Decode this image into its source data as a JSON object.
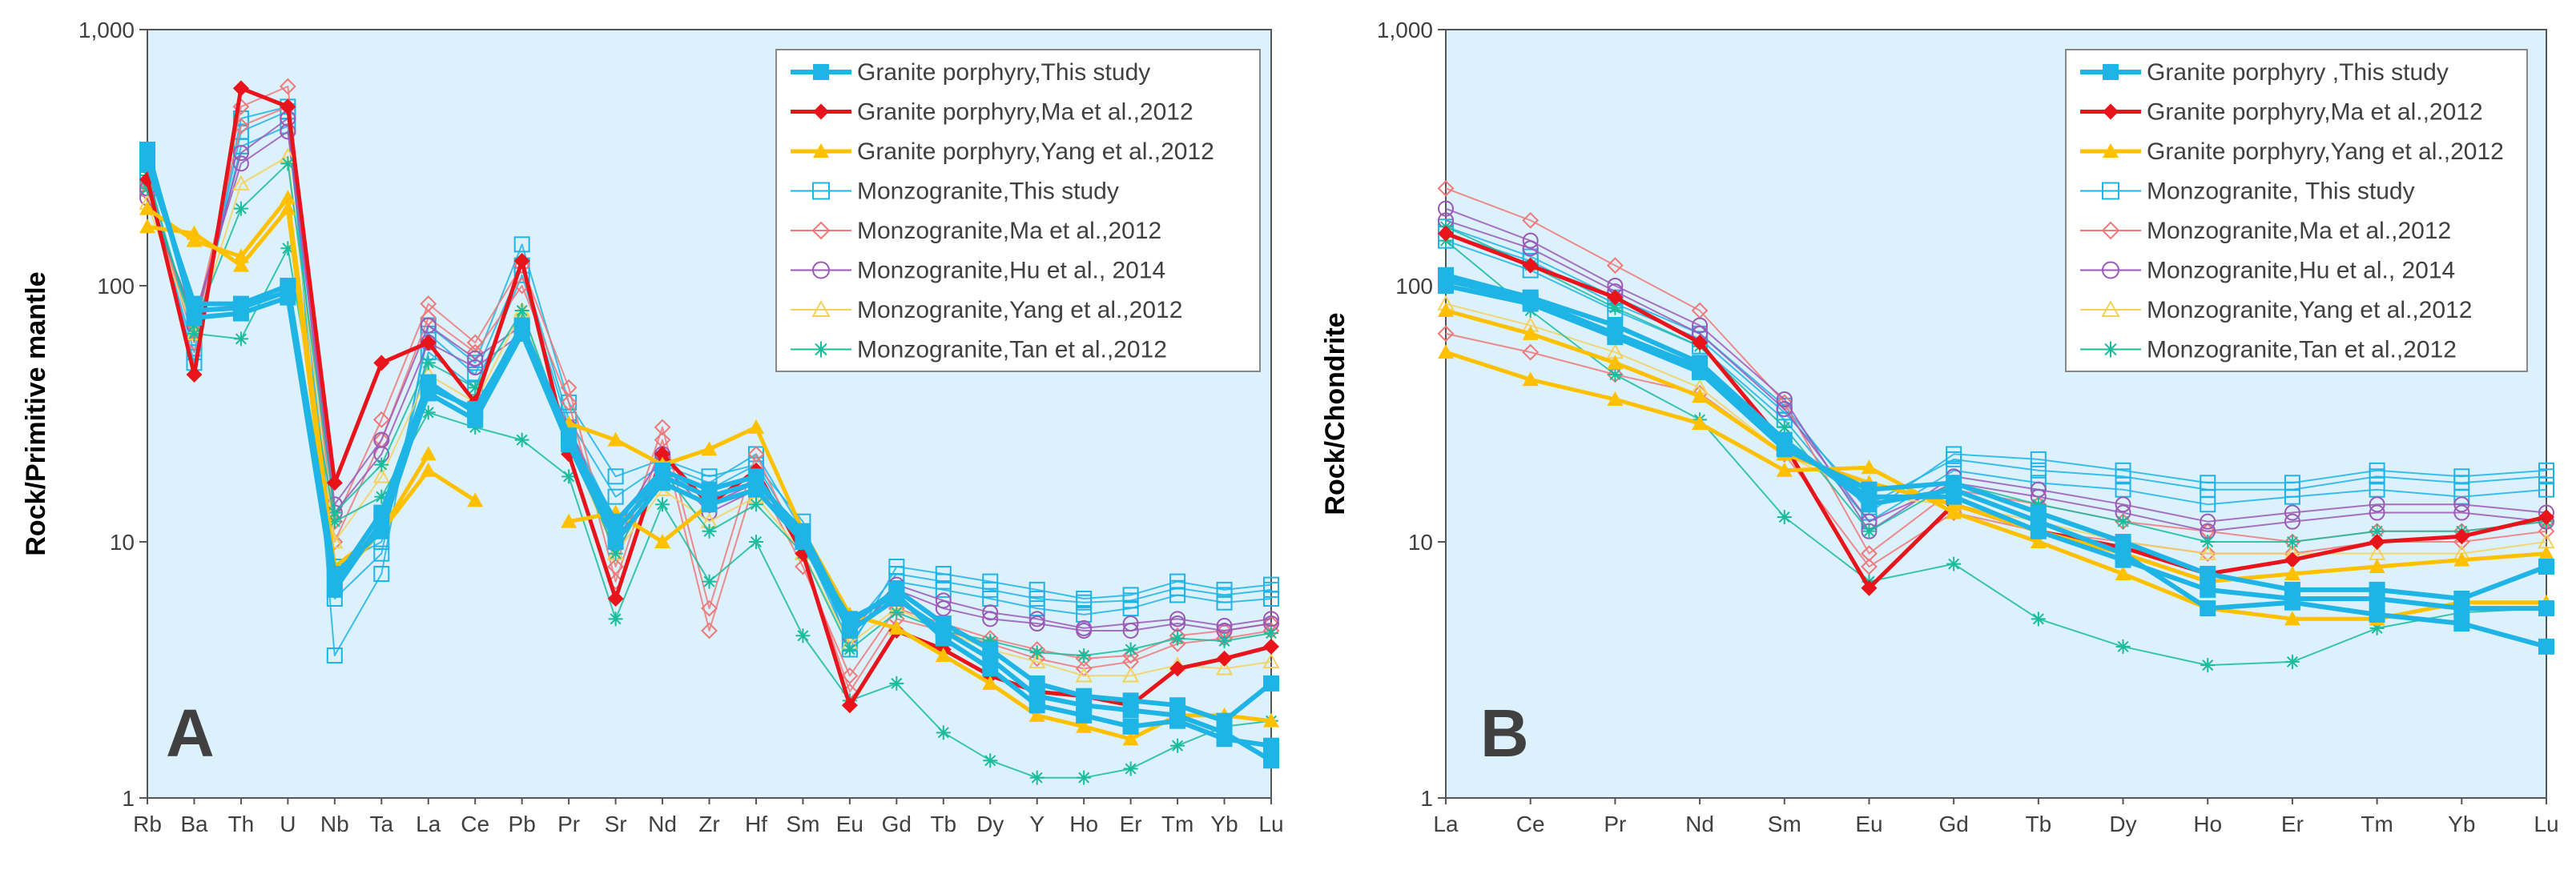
{
  "figure": {
    "colors": {
      "plot_bg": "#dcf1fb",
      "legend_bg": "#ffffff"
    }
  },
  "chart_data": [
    {
      "type": "line",
      "panel_label": "A",
      "ylabel": "Rock/Primitive mantle",
      "xlabel": "",
      "yscale": "log",
      "ylim": [
        1,
        1000
      ],
      "ytick_labels": [
        "1",
        "10",
        "100",
        "1,000"
      ],
      "legend_position": "top-right",
      "categories": [
        "Rb",
        "Ba",
        "Th",
        "U",
        "Nb",
        "Ta",
        "La",
        "Ce",
        "Pb",
        "Pr",
        "Sr",
        "Nd",
        "Zr",
        "Hf",
        "Sm",
        "Eu",
        "Gd",
        "Tb",
        "Dy",
        "Y",
        "Ho",
        "Er",
        "Tm",
        "Yb",
        "Lu"
      ],
      "series": [
        {
          "name": "Granite porphyry,This study",
          "color": "#1fb4e6",
          "marker": "square-filled",
          "linewidth": 6,
          "samples": [
            [
              340,
              75,
              78,
              90,
              6.5,
              12,
              38,
              30,
              65,
              24,
              10,
              17,
              14,
              16,
              10,
              4.5,
              6.0,
              4.5,
              3.5,
              2.5,
              2.3,
              2.2,
              2.1,
              1.8,
              1.4
            ],
            [
              330,
              80,
              82,
              95,
              7.0,
              13,
              42,
              32,
              70,
              26,
              11,
              18,
              15,
              17,
              11,
              4.8,
              6.5,
              4.8,
              3.8,
              2.8,
              2.5,
              2.4,
              2.3,
              2.0,
              2.8
            ],
            [
              300,
              85,
              85,
              100,
              7.5,
              11,
              40,
              33,
              68,
              25,
              12,
              19,
              16,
              18,
              10,
              5.0,
              6.2,
              4.2,
              3.2,
              2.3,
              2.1,
              1.9,
              2.0,
              1.7,
              1.6
            ]
          ]
        },
        {
          "name": "Granite porphyry,Ma et al.,2012",
          "color": "#e8141c",
          "marker": "diamond-filled",
          "linewidth": 5,
          "samples": [
            [
              260,
              45,
              590,
              500,
              17,
              50,
              60,
              35,
              125,
              22,
              6,
              22,
              14,
              19,
              9,
              2.3,
              4.5,
              3.8,
              3.0,
              2.6,
              2.5,
              2.3,
              3.2,
              3.5,
              3.9
            ]
          ]
        },
        {
          "name": "Granite porphyry,Yang et al.,2012",
          "color": "#ffc000",
          "marker": "triangle-filled",
          "linewidth": 5,
          "samples": [
            [
              170,
              160,
              120,
              200,
              7.0,
              11,
              19,
              14.5,
              null,
              29,
              25,
              20,
              23,
              28,
              11,
              5.2,
              4.6,
              3.6,
              2.8,
              2.1,
              1.9,
              1.7,
              2.1,
              2.1,
              2.0
            ],
            [
              200,
              150,
              130,
              220,
              8.0,
              11,
              22,
              null,
              null,
              12,
              13,
              10,
              14,
              16,
              null,
              null,
              null,
              null,
              null,
              null,
              null,
              null,
              null,
              null,
              null
            ]
          ]
        },
        {
          "name": "Monzogranite,This study",
          "color": "#1fb4e6",
          "marker": "square-open",
          "linewidth": 2,
          "samples": [
            [
              260,
              50,
              450,
              500,
              3.6,
              7.5,
              70,
              50,
              145,
              35,
              18,
              21,
              18,
              20,
              12,
              3.8,
              8.0,
              7.5,
              7.0,
              6.5,
              6.0,
              6.2,
              7.0,
              6.5,
              6.8
            ],
            [
              240,
              55,
              400,
              480,
              6.0,
              9.0,
              65,
              45,
              120,
              30,
              15,
              20,
              17,
              22,
              11,
              4.5,
              7.5,
              7.0,
              6.5,
              6.0,
              5.8,
              5.9,
              6.6,
              6.2,
              6.5
            ],
            [
              280,
              60,
              350,
              420,
              8.0,
              10,
              55,
              40,
              110,
              28,
              12,
              18,
              16,
              20,
              10,
              4.0,
              7.0,
              6.5,
              6.0,
              5.5,
              5.2,
              5.5,
              6.2,
              5.8,
              6.0
            ]
          ]
        },
        {
          "name": "Monzogranite,Ma et al.,2012",
          "color": "#f07878",
          "marker": "diamond-open",
          "linewidth": 2,
          "samples": [
            [
              250,
              60,
              500,
              600,
              12,
              30,
              85,
              60,
              120,
              40,
              8,
              28,
              5.5,
              22,
              9,
              2.6,
              5.0,
              4.5,
              4.0,
              3.5,
              3.2,
              3.4,
              4.0,
              4.2,
              4.5
            ],
            [
              230,
              70,
              420,
              500,
              10,
              25,
              75,
              55,
              100,
              35,
              7,
              25,
              4.5,
              18,
              8,
              3.0,
              5.5,
              4.8,
              4.2,
              3.8,
              3.5,
              3.6,
              4.3,
              4.5,
              4.8
            ]
          ]
        },
        {
          "name": "Monzogranite,Hu et al., 2014",
          "color": "#9b59b6",
          "marker": "circle-open",
          "linewidth": 2,
          "samples": [
            [
              240,
              70,
              330,
              450,
              14,
              25,
              70,
              52,
              70,
              28,
              11,
              22,
              14,
              17,
              11,
              4.5,
              6.8,
              5.9,
              5.3,
              5.0,
              4.6,
              4.8,
              5.0,
              4.7,
              5.0
            ],
            [
              220,
              75,
              300,
              400,
              13,
              22,
              60,
              48,
              65,
              26,
              10,
              20,
              13,
              16,
              10,
              4.3,
              6.5,
              5.5,
              5.0,
              4.8,
              4.5,
              4.5,
              4.8,
              4.5,
              4.8
            ]
          ]
        },
        {
          "name": "Monzogranite,Yang et al.,2012",
          "color": "#f5d15c",
          "marker": "triangle-open",
          "linewidth": 2,
          "samples": [
            [
              210,
              65,
              250,
              320,
              10,
              18,
              45,
              35,
              80,
              24,
              9,
              16,
              12,
              15,
              9,
              4.0,
              5.5,
              4.5,
              3.8,
              3.4,
              3.0,
              3.0,
              3.3,
              3.2,
              3.4
            ]
          ]
        },
        {
          "name": "Monzogranite,Tan et al.,2012",
          "color": "#1abc9c",
          "marker": "star",
          "linewidth": 2,
          "samples": [
            [
              270,
              65,
              62,
              140,
              12,
              15,
              32,
              28,
              25,
              18,
              5,
              14,
              7,
              10,
              4.3,
              2.4,
              2.8,
              1.8,
              1.4,
              1.2,
              1.2,
              1.3,
              1.6,
              1.9,
              2.0
            ],
            [
              240,
              70,
              200,
              300,
              13,
              20,
              50,
              40,
              80,
              25,
              9,
              19,
              11,
              14,
              9,
              3.8,
              5.3,
              4.5,
              4.1,
              3.7,
              3.6,
              3.8,
              4.2,
              4.1,
              4.4
            ]
          ]
        }
      ]
    },
    {
      "type": "line",
      "panel_label": "B",
      "ylabel": "Rock/Chondrite",
      "xlabel": "",
      "yscale": "log",
      "ylim": [
        1,
        1000
      ],
      "ytick_labels": [
        "1",
        "10",
        "100",
        "1,000"
      ],
      "legend_position": "top-right",
      "categories": [
        "La",
        "Ce",
        "Pr",
        "Nd",
        "Sm",
        "Eu",
        "Gd",
        "Tb",
        "Dy",
        "Ho",
        "Er",
        "Tm",
        "Yb",
        "Lu"
      ],
      "series": [
        {
          "name": "Granite porphyry ,This study",
          "color": "#1fb4e6",
          "marker": "square-filled",
          "linewidth": 6,
          "samples": [
            [
              110,
              90,
              70,
              50,
              25,
              14,
              16,
              12,
              9,
              5.5,
              5.8,
              5.2,
              4.8,
              3.9
            ],
            [
              100,
              85,
              63,
              46,
              23,
              16,
              17,
              13,
              10,
              7.5,
              6.5,
              6.5,
              6.0,
              8.0
            ],
            [
              105,
              88,
              65,
              48,
              24,
              15,
              15,
              11,
              8.5,
              6.5,
              6.0,
              6.0,
              5.5,
              5.5
            ]
          ]
        },
        {
          "name": "Granite porphyry,Ma et al.,2012",
          "color": "#e8141c",
          "marker": "diamond-filled",
          "linewidth": 5,
          "samples": [
            [
              160,
              120,
              90,
              60,
              24,
              6.6,
              14,
              11,
              9.5,
              7.5,
              8.5,
              10,
              10.5,
              12.5
            ]
          ]
        },
        {
          "name": "Granite porphyry,Yang et al.,2012",
          "color": "#ffc000",
          "marker": "triangle-filled",
          "linewidth": 5,
          "samples": [
            [
              55,
              43,
              36,
              29,
              19,
              19.5,
              13,
              10,
              7.5,
              5.5,
              5,
              5,
              5.8,
              5.8
            ],
            [
              80,
              65,
              50,
              37,
              22,
              17,
              14,
              11,
              9,
              7,
              7.5,
              8,
              8.5,
              9.0
            ]
          ]
        },
        {
          "name": "Monzogranite, This study",
          "color": "#1fb4e6",
          "marker": "square-open",
          "linewidth": 2,
          "samples": [
            [
              170,
              130,
              90,
              65,
              34,
              13,
              22,
              21,
              19,
              17,
              17,
              19,
              18,
              19
            ],
            [
              160,
              125,
              85,
              62,
              32,
              14,
              21,
              19,
              18,
              16,
              16,
              18,
              17,
              18
            ],
            [
              150,
              115,
              80,
              58,
              30,
              12,
              19,
              17,
              16,
              14,
              15,
              16,
              15,
              16
            ]
          ]
        },
        {
          "name": "Monzogranite,Ma et al.,2012",
          "color": "#f07878",
          "marker": "diamond-open",
          "linewidth": 2,
          "samples": [
            [
              240,
              180,
              120,
              80,
              35,
              9,
              16,
              14,
              12,
              11,
              10,
              11,
              11,
              12
            ],
            [
              65,
              55,
              45,
              38,
              22,
              8,
              13,
              11,
              10,
              9,
              9,
              10,
              10,
              11
            ]
          ]
        },
        {
          "name": "Monzogranite,Hu et al., 2014",
          "color": "#9b59b6",
          "marker": "circle-open",
          "linewidth": 2,
          "samples": [
            [
              200,
              150,
              100,
              70,
              36,
              11,
              18,
              16,
              14,
              12,
              13,
              14,
              14,
              13
            ],
            [
              180,
              140,
              95,
              65,
              33,
              12,
              17,
              15,
              13,
              11,
              12,
              13,
              13,
              12
            ]
          ]
        },
        {
          "name": "Monzogranite,Yang et al.,2012",
          "color": "#f5d15c",
          "marker": "triangle-open",
          "linewidth": 2,
          "samples": [
            [
              85,
              70,
              55,
              40,
              22,
              15,
              14,
              12,
              10,
              9,
              9,
              9,
              9,
              10
            ]
          ]
        },
        {
          "name": "Monzogranite,Tan et al.,2012",
          "color": "#1abc9c",
          "marker": "star",
          "linewidth": 2,
          "samples": [
            [
              150,
              80,
              45,
              30,
              12.5,
              7,
              8.2,
              5,
              3.9,
              3.3,
              3.4,
              4.6,
              5.3,
              5.5
            ],
            [
              170,
              120,
              82,
              58,
              28,
              11,
              17,
              14,
              12,
              10,
              10,
              11,
              11,
              12
            ]
          ]
        }
      ]
    }
  ]
}
